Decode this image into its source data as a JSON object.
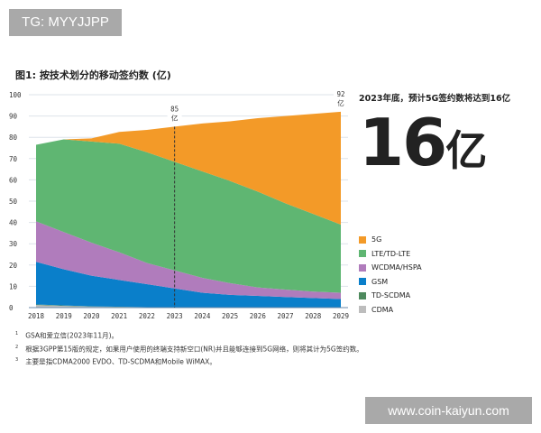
{
  "watermark_top": "TG: MYYJJPP",
  "watermark_bottom": "www.coin-kaiyun.com",
  "headline": "2023年底，预计5G签约数将达到16亿",
  "big_number": "16",
  "big_unit": "亿",
  "footnotes": [
    {
      "mark": "1",
      "text": "GSA和爱立信(2023年11月)。"
    },
    {
      "mark": "2",
      "text": "根据3GPP第15版的规定，如果用户使用的终端支持新空口(NR)并且能够连接到5G网络，则将其计为5G签约数。"
    },
    {
      "mark": "3",
      "text": "主要是指CDMA2000 EVDO、TD-SCDMA和Mobile WiMAX。"
    }
  ],
  "chart_data": {
    "type": "area",
    "stacked": true,
    "title": "图1: 按技术划分的移动签约数 (亿)",
    "xlabel": "",
    "ylabel": "",
    "categories": [
      "2018",
      "2019",
      "2020",
      "2021",
      "2022",
      "2023",
      "2024",
      "2025",
      "2026",
      "2027",
      "2028",
      "2029"
    ],
    "ylim": [
      0,
      100
    ],
    "yticks": [
      0,
      10,
      20,
      30,
      40,
      50,
      60,
      70,
      80,
      90,
      100
    ],
    "grid": true,
    "legend_position": "right",
    "series": [
      {
        "name": "CDMA",
        "color": "#bdbdbd",
        "values": [
          1.2,
          0.8,
          0.5,
          0.3,
          0.2,
          0.1,
          0,
          0,
          0,
          0,
          0,
          0
        ]
      },
      {
        "name": "TD-SCDMA",
        "color": "#4e8a5e",
        "values": [
          0.3,
          0.2,
          0.1,
          0.1,
          0,
          0,
          0,
          0,
          0,
          0,
          0,
          0
        ]
      },
      {
        "name": "GSM",
        "color": "#0a7fca",
        "values": [
          20,
          17,
          14.4,
          12.6,
          10.8,
          8.9,
          7,
          6,
          5.5,
          5,
          4.5,
          4
        ]
      },
      {
        "name": "WCDMA/HSPA",
        "color": "#b07cbc",
        "values": [
          19,
          17.5,
          15.5,
          13,
          10,
          8.5,
          7,
          5.5,
          4,
          3.5,
          3,
          3
        ]
      },
      {
        "name": "LTE/TD-LTE",
        "color": "#5fb672",
        "values": [
          36,
          43.5,
          47.5,
          51,
          52,
          51,
          50,
          48,
          45,
          40.5,
          36.5,
          32
        ]
      },
      {
        "name": "5G",
        "color": "#f39a28",
        "values": [
          0,
          0,
          1.5,
          5.5,
          10.5,
          16.5,
          22.5,
          28,
          34.5,
          41,
          47,
          53
        ]
      }
    ],
    "annotations": [
      {
        "x": "2023",
        "text_value": "85",
        "text_unit": "亿",
        "dashed_line": true
      },
      {
        "x": "2029",
        "text_value": "92",
        "text_unit": "亿"
      }
    ]
  }
}
